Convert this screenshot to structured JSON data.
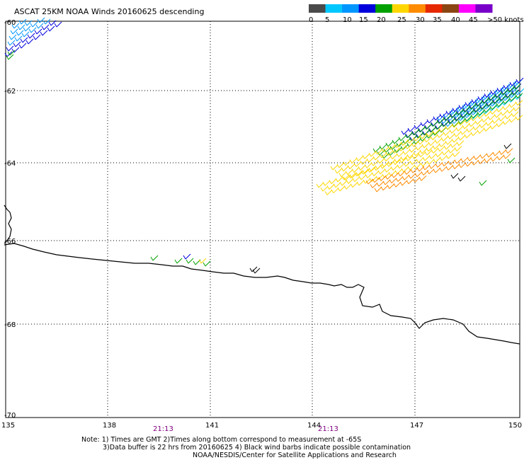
{
  "title": "ASCAT 25KM NOAA Winds 20160625 descending",
  "legend": {
    "units": "knots",
    "labels": [
      "0",
      "5",
      "10",
      "15",
      "20",
      "25",
      "30",
      "35",
      "40",
      "45",
      ">50 knots"
    ],
    "colors": [
      "#4a4a4a",
      "#00c8ff",
      "#0096ff",
      "#0000dc",
      "#00a000",
      "#ffd700",
      "#ff8c00",
      "#e62800",
      "#8b4513",
      "#ff00ff",
      "#7800c8"
    ]
  },
  "axes": {
    "lon_labels": [
      "135",
      "138",
      "141",
      "144",
      "147",
      "150"
    ],
    "lat_labels": [
      "-60",
      "-62",
      "-64",
      "-66",
      "-68",
      "-70"
    ]
  },
  "time_labels": [
    "21:13",
    "21:13"
  ],
  "notes": [
    "Note: 1) Times are GMT 2)Times along bottom correspond to measurement at -65S",
    "3)Data buffer is 22 hrs from 20160625 4) Black wind barbs indicate possible contamination",
    "NOAA/NESDIS/Center for Satellite Applications and Research"
  ],
  "colors": {
    "coastline": "#000000",
    "grid": "#000000",
    "time_label": "#800080"
  }
}
